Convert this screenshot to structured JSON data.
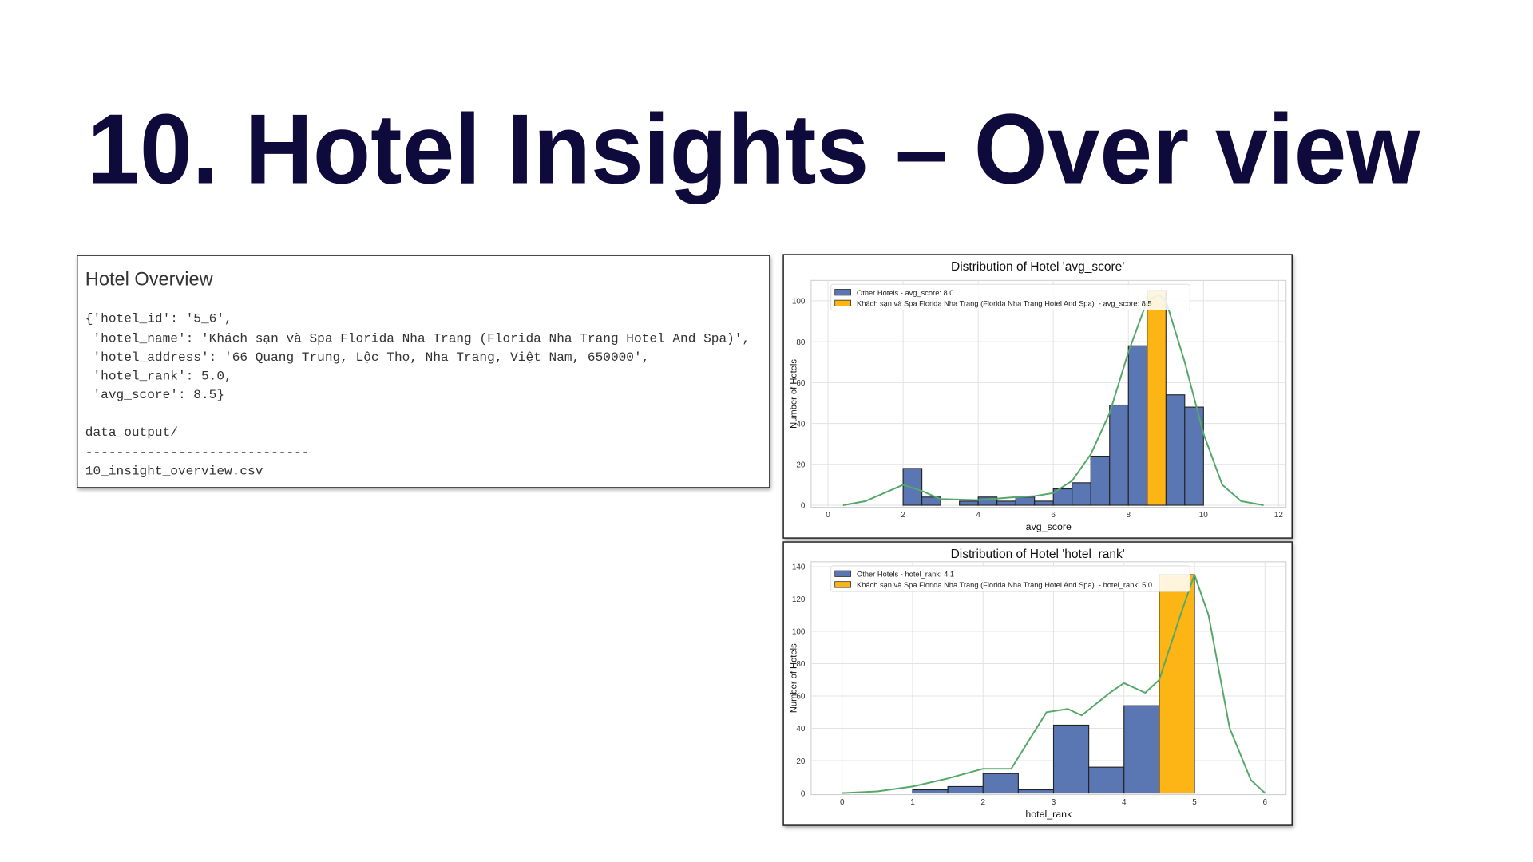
{
  "slide_title": "10. Hotel Insights – Over view",
  "overview": {
    "title": "Hotel Overview",
    "lines": [
      "{'hotel_id': '5_6',",
      " 'hotel_name': 'Khách sạn và Spa Florida Nha Trang (Florida Nha Trang Hotel And Spa)',",
      " 'hotel_address': '66 Quang Trung, Lộc Thọ, Nha Trang, Việt Nam, 650000',",
      " 'hotel_rank': 5.0,",
      " 'avg_score': 8.5}",
      "data_output/",
      "-----------------------------",
      "10_insight_overview.csv"
    ]
  },
  "chart_data": [
    {
      "type": "histogram",
      "title": "Distribution of Hotel 'avg_score'",
      "xlabel": "avg_score",
      "ylabel": "Number of Hotels",
      "bins": [
        2,
        2.5,
        3,
        3.5,
        4,
        4.5,
        5,
        5.5,
        6,
        6.5,
        7,
        7.5,
        8,
        8.5,
        9,
        9.5,
        10
      ],
      "series": [
        {
          "name": "Other Hotels - avg_score: 8.0",
          "color": "#5a77b3",
          "values": [
            18,
            4,
            0,
            2,
            4,
            2,
            4,
            2,
            8,
            11,
            24,
            49,
            78,
            null,
            54,
            48
          ]
        },
        {
          "name": "Khách sạn và Spa Florida Nha Trang (Florida Nha Trang Hotel And Spa)  - avg_score: 8.5",
          "color": "#fdb515",
          "values": [
            null,
            null,
            null,
            null,
            null,
            null,
            null,
            null,
            null,
            null,
            null,
            null,
            null,
            105,
            null,
            null
          ]
        }
      ],
      "kde": {
        "color": "#55a868",
        "x": [
          0.4,
          1,
          1.5,
          2,
          2.5,
          3,
          4,
          5,
          5.5,
          6,
          6.5,
          7,
          7.5,
          8,
          8.5,
          8.8,
          9,
          9.5,
          10,
          10.5,
          11,
          11.6
        ],
        "values": [
          0,
          2,
          6,
          10,
          7,
          3,
          2.5,
          4,
          4.5,
          6,
          12,
          25,
          45,
          75,
          100,
          103,
          100,
          70,
          35,
          10,
          2,
          0
        ]
      },
      "xlim": [
        -0.45,
        12.2
      ],
      "ylim": [
        -1,
        110
      ],
      "xticks": [
        0,
        2,
        4,
        6,
        8,
        10,
        12
      ],
      "yticks": [
        0,
        20,
        40,
        60,
        80,
        100
      ],
      "grid": true
    },
    {
      "type": "histogram",
      "title": "Distribution of Hotel 'hotel_rank'",
      "xlabel": "hotel_rank",
      "ylabel": "Number of Hotels",
      "bins": [
        1,
        1.5,
        2,
        2.5,
        3,
        3.5,
        4,
        4.5,
        5
      ],
      "series": [
        {
          "name": "Other Hotels - hotel_rank: 4.1",
          "color": "#5a77b3",
          "values": [
            2,
            4,
            12,
            2,
            42,
            16,
            54,
            null
          ]
        },
        {
          "name": "Khách sạn và Spa Florida Nha Trang (Florida Nha Trang Hotel And Spa)  - hotel_rank: 5.0",
          "color": "#fdb515",
          "values": [
            null,
            null,
            null,
            null,
            null,
            null,
            null,
            135
          ]
        }
      ],
      "kde": {
        "color": "#55a868",
        "x": [
          0,
          0.5,
          1,
          1.5,
          2,
          2.4,
          2.9,
          3.2,
          3.4,
          3.8,
          4,
          4.3,
          4.5,
          4.8,
          5,
          5.2,
          5.5,
          5.8,
          6
        ],
        "values": [
          0,
          1,
          4,
          9,
          15,
          15,
          50,
          52,
          48,
          62,
          68,
          62,
          70,
          110,
          135,
          110,
          40,
          8,
          0
        ]
      },
      "xlim": [
        -0.44,
        6.3
      ],
      "ylim": [
        -1,
        143
      ],
      "xticks": [
        0,
        1,
        2,
        3,
        4,
        5,
        6
      ],
      "yticks": [
        0,
        20,
        40,
        60,
        80,
        100,
        120,
        140
      ],
      "grid": true
    }
  ]
}
